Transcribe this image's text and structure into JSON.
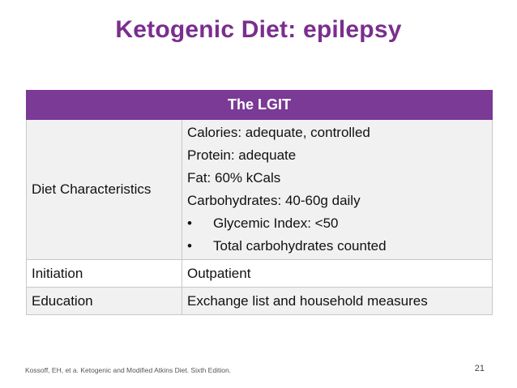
{
  "slide": {
    "title": "Ketogenic Diet: epilepsy",
    "page_number": "21",
    "citation": "Kossoff, EH, et a. Ketogenic and Modified Atkins Diet. Sixth Edition."
  },
  "table": {
    "header": "The LGIT",
    "rows": [
      {
        "label": "Diet Characteristics",
        "lines": [
          "Calories: adequate, controlled",
          "Protein: adequate",
          "Fat: 60% kCals",
          "Carbohydrates: 40-60g daily"
        ],
        "bullet_char": "•",
        "bullets": [
          "Glycemic Index: <50",
          "Total carbohydrates counted"
        ]
      },
      {
        "label": "Initiation",
        "value": "Outpatient"
      },
      {
        "label": "Education",
        "value": "Exchange list and household measures"
      }
    ]
  },
  "colors": {
    "title": "#7a2e8e",
    "header_bg": "#7a3a95",
    "header_text": "#ffffff",
    "row_shade": "#f1f1f1"
  }
}
